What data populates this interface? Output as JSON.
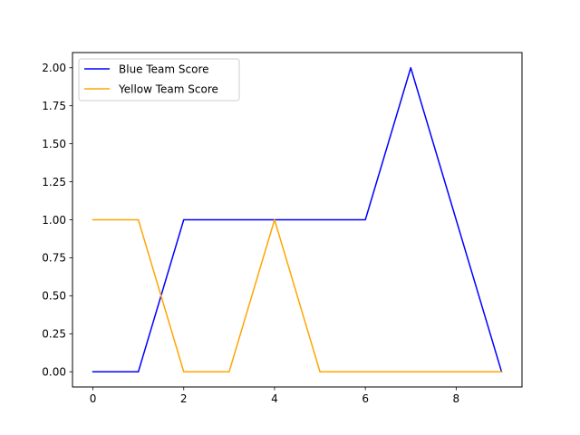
{
  "chart_data": {
    "type": "line",
    "title": "",
    "xlabel": "",
    "ylabel": "",
    "x": [
      0,
      1,
      2,
      3,
      4,
      5,
      6,
      7,
      8,
      9
    ],
    "series": [
      {
        "name": "Blue Team Score",
        "color": "#0000ff",
        "values": [
          0,
          0,
          1,
          1,
          1,
          1,
          1,
          2,
          1,
          0
        ]
      },
      {
        "name": "Yellow Team Score",
        "color": "#ffa500",
        "values": [
          1,
          1,
          0,
          0,
          1,
          0,
          0,
          0,
          0,
          0
        ]
      }
    ],
    "xlim": [
      -0.45,
      9.45
    ],
    "ylim": [
      -0.1,
      2.1
    ],
    "xticks": [
      0,
      2,
      4,
      6,
      8
    ],
    "xtick_labels": [
      "0",
      "2",
      "4",
      "6",
      "8"
    ],
    "yticks": [
      0,
      0.25,
      0.5,
      0.75,
      1.0,
      1.25,
      1.5,
      1.75,
      2.0
    ],
    "ytick_labels": [
      "0.00",
      "0.25",
      "0.50",
      "0.75",
      "1.00",
      "1.25",
      "1.50",
      "1.75",
      "2.00"
    ],
    "grid": false,
    "legend_position": "upper-left"
  }
}
